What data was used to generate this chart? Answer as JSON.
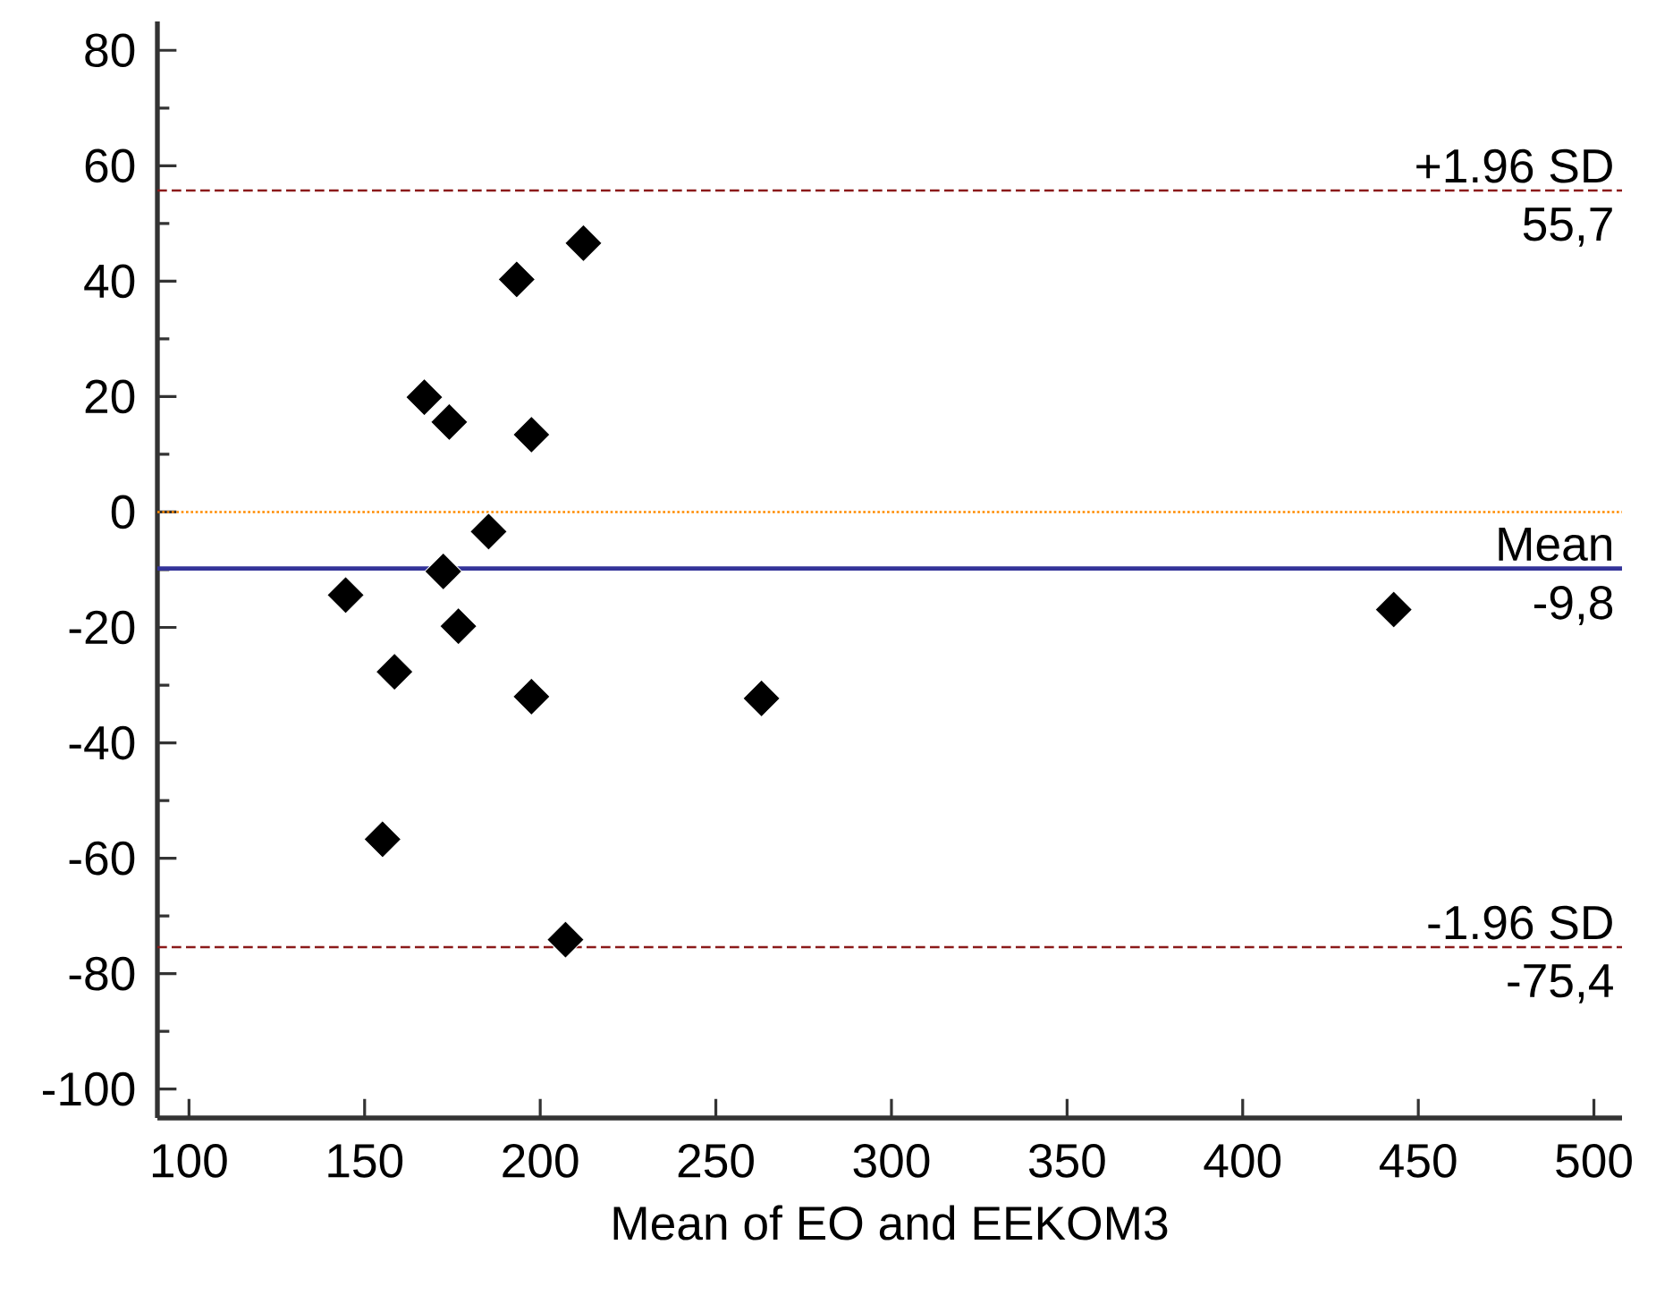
{
  "chart_data": {
    "type": "scatter",
    "xlabel": "Mean of EO and EEKOM3",
    "x": [
      212.3,
      193.3,
      167.0,
      174.1,
      197.5,
      185.3,
      172.4,
      144.6,
      176.7,
      158.5,
      197.5,
      155.1,
      207.2,
      263,
      443
    ],
    "values": [
      46.6,
      40.3,
      19.9,
      15.6,
      13.4,
      -3.4,
      -10.3,
      -14.4,
      -19.8,
      -27.7,
      -32.0,
      -56.7,
      -74.1,
      -32.3,
      -16.9
    ],
    "color": "#000000",
    "marker": "diamond",
    "xlim": [
      91,
      508
    ],
    "ylim": [
      -105,
      85
    ],
    "xticks": [
      100,
      150,
      200,
      250,
      300,
      350,
      400,
      450,
      500
    ],
    "yticks": [
      -100,
      -80,
      -60,
      -40,
      -20,
      0,
      20,
      40,
      60,
      80
    ],
    "ref_lines": [
      {
        "axis": "y",
        "value": 55.7,
        "label": "+1.96 SD",
        "color": "#8b1a1a",
        "line_style": "dashed"
      },
      {
        "axis": "y",
        "value": 0,
        "color": "#ff8c00",
        "line_style": "dotted"
      },
      {
        "axis": "y",
        "value": -9.8,
        "label": "Mean",
        "color": "#333399",
        "line_style": "solid"
      },
      {
        "axis": "y",
        "value": -75.4,
        "label": "-1.96 SD",
        "color": "#8b1a1a",
        "line_style": "dashed"
      }
    ],
    "annotations": [
      {
        "text": "55,7",
        "y": 55.7
      },
      {
        "text": "-9,8",
        "y": -9.8
      },
      {
        "text": "-75,4",
        "y": -75.4
      }
    ]
  }
}
